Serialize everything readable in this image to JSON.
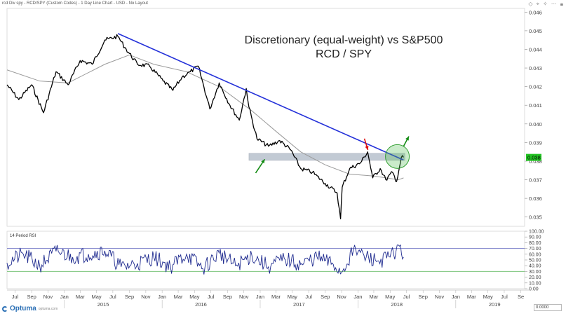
{
  "header": {
    "chart_caption": "rcd Div spy - RCD/SPY (Custom Codes) - 1 Day Line Chart - USD - No Layout"
  },
  "toolbar": {
    "icons": [
      "diamond-icon",
      "pin-icon",
      "star-icon",
      "more-icon",
      "lock-icon"
    ]
  },
  "footer": {
    "brand": "Optuma",
    "brand_sub": "optuma.com",
    "zoom_value": "0.0000"
  },
  "colors": {
    "price": "#000000",
    "moving_average": "#9a9a9a",
    "trendline": "#2431d9",
    "support_band": "#a9b4c2",
    "rsi": "#1f2b8f",
    "rsi_upper": "#7b7fc9",
    "rsi_lower": "#7cc47c",
    "annotation_green": "#148c14",
    "annotation_red": "#e01010",
    "current_price_badge": "#22c322"
  },
  "chart_data": [
    {
      "type": "line",
      "title": "Discretionary (equal-weight) vs S&P500",
      "subtitle": "RCD / SPY",
      "ylim": [
        0.0345,
        0.0462
      ],
      "y_tick_labels": [
        "0.046",
        "0.045",
        "0.044",
        "0.043",
        "0.042",
        "0.041",
        "0.040",
        "0.039",
        "0.038",
        "0.037",
        "0.036",
        "0.035"
      ],
      "y_ticks": [
        0.046,
        0.045,
        0.044,
        0.043,
        0.042,
        0.041,
        0.04,
        0.039,
        0.038,
        0.037,
        0.036,
        0.035
      ],
      "current_value_label": "0.038",
      "current_value": 0.0382,
      "series": [
        {
          "x": [
            "2014-06-01",
            "2014-07-15",
            "2014-09-01",
            "2014-10-15",
            "2014-12-01",
            "2015-01-15",
            "2015-03-01",
            "2015-04-15",
            "2015-06-01",
            "2015-07-20",
            "2015-08-15",
            "2015-10-01",
            "2015-11-15",
            "2016-01-05",
            "2016-02-10",
            "2016-03-15",
            "2016-04-15",
            "2016-05-15",
            "2016-06-27",
            "2016-08-01",
            "2016-09-10",
            "2016-10-15",
            "2016-11-10",
            "2016-11-20",
            "2016-12-20",
            "2017-02-01",
            "2017-03-15",
            "2017-04-25",
            "2017-06-01",
            "2017-07-15",
            "2017-09-01",
            "2017-10-15",
            "2017-10-28",
            "2017-11-03",
            "2017-12-01",
            "2018-01-10",
            "2018-02-06",
            "2018-02-25",
            "2018-03-25",
            "2018-04-15",
            "2018-05-10",
            "2018-05-25",
            "2018-06-12",
            "2018-06-20"
          ],
          "values": [
            0.0421,
            0.0413,
            0.0421,
            0.0406,
            0.0428,
            0.0421,
            0.0434,
            0.0432,
            0.0445,
            0.0447,
            0.0441,
            0.0432,
            0.0431,
            0.0423,
            0.0418,
            0.0425,
            0.0428,
            0.0431,
            0.0408,
            0.0422,
            0.041,
            0.0402,
            0.0419,
            0.0409,
            0.0392,
            0.0388,
            0.0391,
            0.0386,
            0.0376,
            0.0374,
            0.0368,
            0.0363,
            0.0349,
            0.0366,
            0.0376,
            0.0379,
            0.0385,
            0.0371,
            0.0376,
            0.037,
            0.0374,
            0.0369,
            0.0382,
            0.0382
          ]
        },
        {
          "x": [
            "2014-06-01",
            "2014-10-01",
            "2015-01-15",
            "2015-06-01",
            "2015-09-01",
            "2015-12-01",
            "2016-04-01",
            "2016-08-01",
            "2016-12-01",
            "2017-03-01",
            "2017-06-01",
            "2017-09-01",
            "2017-12-01",
            "2018-03-01",
            "2018-06-01",
            "2018-06-20"
          ],
          "values": [
            0.0429,
            0.0423,
            0.0422,
            0.0432,
            0.0437,
            0.0432,
            0.0428,
            0.042,
            0.0407,
            0.0396,
            0.0385,
            0.0378,
            0.0373,
            0.0372,
            0.037,
            0.0371
          ]
        }
      ],
      "annotations": {
        "trendline": {
          "from": [
            "2015-07-20",
            0.04485
          ],
          "to": [
            "2018-06-20",
            0.03806
          ]
        },
        "support_band": {
          "from": "2016-11-20",
          "to": "2018-06-25",
          "y_low": 0.03804,
          "y_high": 0.03842
        },
        "circle_center": [
          "2018-05-28",
          0.03825
        ],
        "red_arrow": {
          "from": [
            "2018-01-25",
            0.03921
          ],
          "to": [
            "2018-02-07",
            0.0386
          ]
        },
        "green_arrow_support": {
          "from": [
            "2016-12-15",
            0.03736
          ],
          "to": [
            "2017-01-18",
            0.0381
          ]
        },
        "green_arrow_breakout": {
          "from": [
            "2018-06-20",
            0.0388
          ],
          "to": [
            "2018-07-10",
            0.03933
          ]
        }
      }
    },
    {
      "type": "line",
      "title": "14 Period RSI",
      "ylim": [
        0,
        100
      ],
      "y_ticks": [
        100,
        90,
        80,
        70,
        60,
        50,
        40,
        30,
        20,
        10,
        0
      ],
      "y_tick_labels": [
        "100.00",
        "90.00",
        "80.00",
        "70.00",
        "60.00",
        "50.00",
        "40.00",
        "30.00",
        "20.00",
        "10.00",
        "0.00"
      ],
      "reference_lines": [
        70,
        30
      ],
      "series": [
        {
          "x": [
            "2014-06-01",
            "2014-08-01",
            "2014-10-01",
            "2014-12-01",
            "2015-02-01",
            "2015-04-01",
            "2015-06-01",
            "2015-08-01",
            "2015-10-01",
            "2015-12-01",
            "2016-02-01",
            "2016-04-01",
            "2016-06-01",
            "2016-08-01",
            "2016-10-01",
            "2016-12-01",
            "2017-02-01",
            "2017-04-01",
            "2017-06-01",
            "2017-08-01",
            "2017-10-01",
            "2017-11-01",
            "2017-12-15",
            "2018-02-01",
            "2018-03-15",
            "2018-05-01",
            "2018-06-05",
            "2018-06-20"
          ],
          "values": [
            45,
            60,
            40,
            65,
            55,
            60,
            66,
            38,
            44,
            55,
            38,
            60,
            35,
            62,
            40,
            58,
            38,
            52,
            42,
            55,
            42,
            28,
            68,
            55,
            48,
            55,
            74,
            55
          ]
        }
      ]
    }
  ],
  "x_axis": {
    "month_labels": [
      "y",
      "Jul",
      "Sep",
      "Nov",
      "Jan",
      "Mar",
      "May",
      "Jul",
      "Sep",
      "Nov",
      "Jan",
      "Mar",
      "May",
      "Jul",
      "Sep",
      "Nov",
      "Jan",
      "Mar",
      "May",
      "Jul",
      "Sep",
      "Nov",
      "Jan",
      "Mar",
      "May",
      "Jul",
      "Sep",
      "Nov",
      "Jan",
      "Mar",
      "May",
      "Jul",
      "Se"
    ],
    "year_labels": [
      "2015",
      "2016",
      "2017",
      "2018",
      "2019"
    ]
  }
}
